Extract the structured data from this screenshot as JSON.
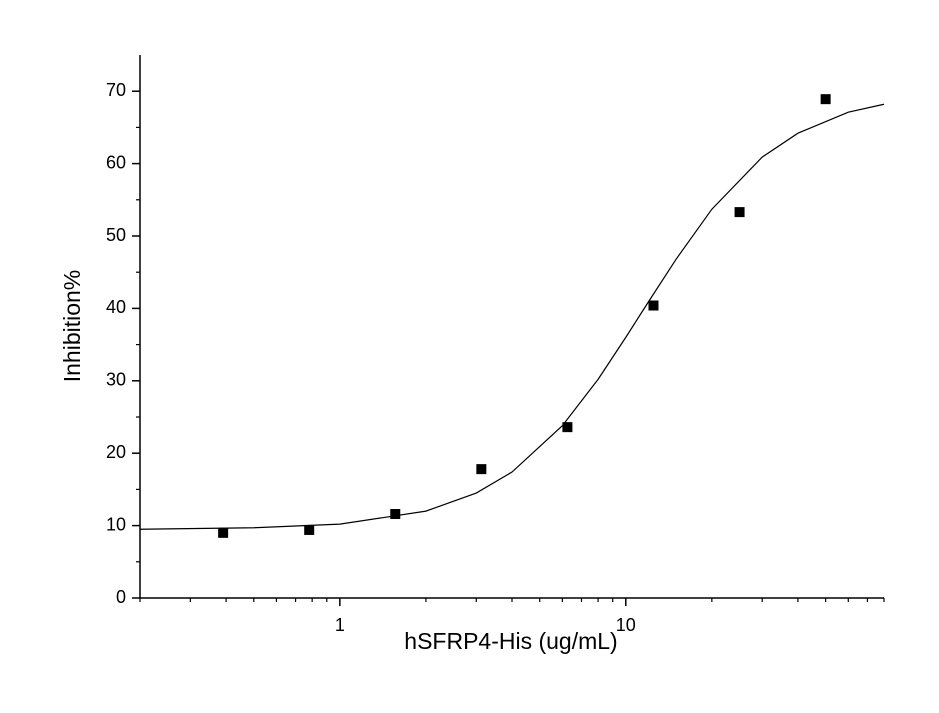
{
  "chart_data": {
    "type": "scatter",
    "x_label": "hSFRP4-His (ug/mL)",
    "y_label": "Inhibition%",
    "xscale": "log",
    "xlim": [
      0.2,
      80
    ],
    "ylim": [
      0,
      75
    ],
    "xticks": [
      1,
      10
    ],
    "xminorticks": [
      0.2,
      0.3,
      0.4,
      0.5,
      0.6,
      0.7,
      0.8,
      0.9,
      2,
      3,
      4,
      5,
      6,
      7,
      8,
      9,
      20,
      30,
      40,
      50,
      60,
      70,
      80
    ],
    "yticks": [
      0,
      10,
      20,
      30,
      40,
      50,
      60,
      70
    ],
    "yminorticks": [
      5,
      15,
      25,
      35,
      45,
      55,
      65
    ],
    "grid": false,
    "series": [
      {
        "type": "scatter",
        "color": "#000000",
        "x": [
          0.390625,
          0.78125,
          1.5625,
          3.125,
          6.25,
          12.5,
          25,
          50
        ],
        "values": [
          9.0,
          9.4,
          11.6,
          17.8,
          23.6,
          40.4,
          53.3,
          68.9
        ]
      },
      {
        "type": "line",
        "color": "#000000",
        "x": [
          0.2,
          0.5,
          1,
          2,
          3,
          4,
          6,
          8,
          10,
          12,
          15,
          20,
          30,
          40,
          60,
          80
        ],
        "values": [
          9.5,
          9.7,
          10.2,
          12.0,
          14.5,
          17.4,
          23.8,
          30.2,
          36.0,
          40.9,
          46.8,
          53.7,
          60.9,
          64.2,
          67.1,
          68.2
        ]
      }
    ]
  }
}
